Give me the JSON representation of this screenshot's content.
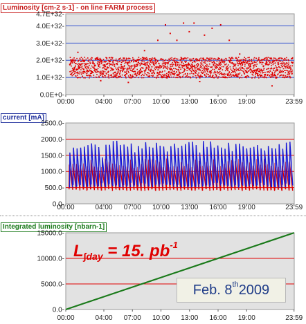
{
  "chart_data": [
    {
      "type": "scatter",
      "title": "Luminosity [cm-2 s-1] - on line FARM process",
      "ytick_labels": [
        "4.7E+32-",
        "4.0E+32-",
        "3.0E+32-",
        "2.0E+32-",
        "1.0E+32-",
        "0.0E+0-"
      ],
      "ytick_values": [
        4.7e+32,
        4e+32,
        3e+32,
        2e+32,
        1e+32,
        0
      ],
      "ylim": [
        0,
        4.7e+32
      ],
      "xtick_labels": [
        "00:00",
        "04:00",
        "07:00",
        "10:00",
        "13:00",
        "16:00",
        "19:00",
        "23:59"
      ],
      "xtick_values": [
        0,
        4,
        7,
        10,
        13,
        16,
        19,
        23.98
      ],
      "xlim": [
        0,
        24
      ],
      "reference_lines": [
        4e+32,
        3e+32,
        2e+32,
        1e+32
      ],
      "series": [
        {
          "color": "#e00000",
          "band_low": 1e+32,
          "band_high": 2.2e+32,
          "outliers_max": 4.3e+32
        }
      ]
    },
    {
      "type": "line",
      "title": "current [mA]",
      "ytick_labels": [
        "2500.0-",
        "2000.0-",
        "1500.0-",
        "1000.0-",
        "500.0-",
        "0.0-"
      ],
      "ytick_values": [
        2500,
        2000,
        1500,
        1000,
        500,
        0
      ],
      "ylim": [
        0,
        2500
      ],
      "xtick_labels": [
        "00:00",
        "04:00",
        "07:00",
        "10:00",
        "13:00",
        "16:00",
        "19:00",
        "23:59"
      ],
      "xtick_values": [
        0,
        4,
        7,
        10,
        13,
        16,
        19,
        23.98
      ],
      "xlim": [
        0,
        24
      ],
      "reference_lines": [
        2000,
        1500,
        1000,
        500
      ],
      "series": [
        {
          "color": "#1a1ad6",
          "min": 500,
          "max": 1950
        },
        {
          "color": "#e00000",
          "min": 400,
          "max": 1400
        }
      ]
    },
    {
      "type": "line",
      "title": "Integrated luminosity [nbarn-1]",
      "ytick_labels": [
        "15000.0-",
        "10000.0-",
        "5000.0-",
        "0.0-"
      ],
      "ytick_values": [
        15000,
        10000,
        5000,
        0
      ],
      "ylim": [
        0,
        15000
      ],
      "xtick_labels": [
        "00:00",
        "04:00",
        "07:00",
        "10:00",
        "13:00",
        "16:00",
        "19:00",
        "23:59"
      ],
      "xtick_values": [
        0,
        4,
        7,
        10,
        13,
        16,
        19,
        23.98
      ],
      "xlim": [
        0,
        24
      ],
      "reference_lines": [
        10000,
        5000
      ],
      "series": [
        {
          "color": "#1a7a1a",
          "x": [
            0,
            23.98
          ],
          "y": [
            0,
            15000
          ]
        }
      ]
    }
  ],
  "annotation": {
    "l": "L",
    "sub": "∫day",
    "rest": " = 15. pb",
    "sup": "-1"
  },
  "date": {
    "main": "Feb. 8",
    "sup": "th",
    "year": " 2009"
  },
  "colors": {
    "lum_title": "#c81e1e",
    "cur_title": "#1f2f9c",
    "int_title": "#1a7a1a",
    "blue_line": "#3050d0",
    "red_line": "#e00000",
    "grid_bg": "#e2e2e2"
  }
}
